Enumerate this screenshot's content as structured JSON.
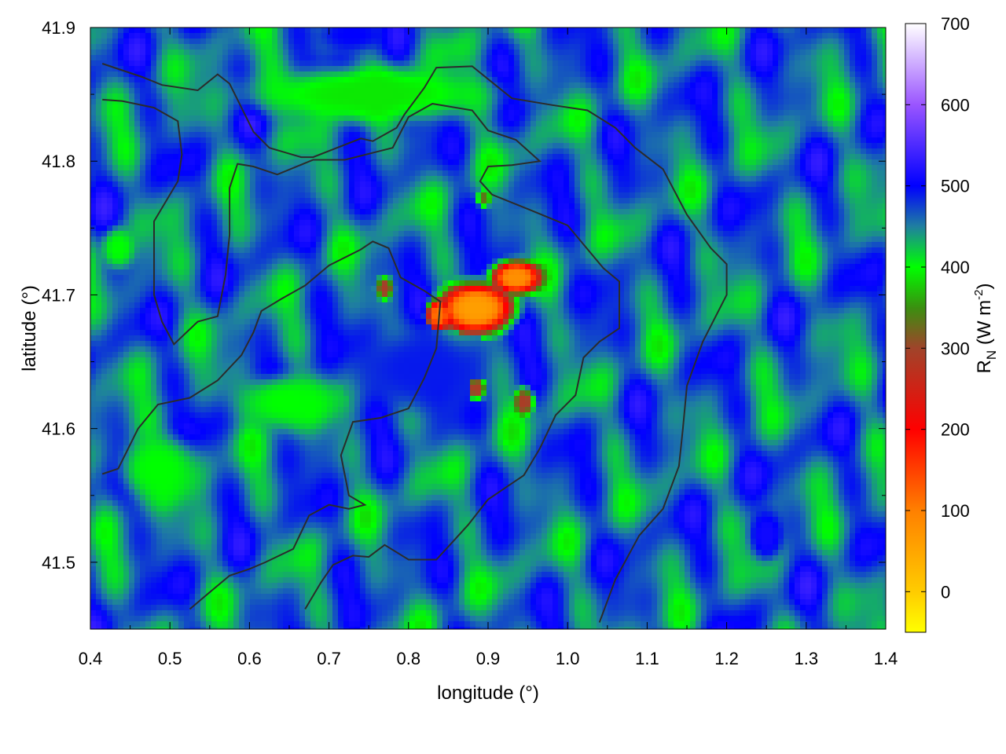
{
  "chart_data": {
    "type": "heatmap",
    "title": "",
    "xlabel": "longitude (°)",
    "ylabel": "latitude (°)",
    "xlim": [
      0.4,
      1.4
    ],
    "ylim": [
      41.45,
      41.9
    ],
    "x_ticks": [
      "0.4",
      "0.5",
      "0.6",
      "0.7",
      "0.8",
      "0.9",
      "1.0",
      "1.1",
      "1.2",
      "1.3",
      "1.4"
    ],
    "x_tick_values": [
      0.4,
      0.5,
      0.6,
      0.7,
      0.8,
      0.9,
      1.0,
      1.1,
      1.2,
      1.3,
      1.4
    ],
    "y_ticks": [
      "41.5",
      "41.6",
      "41.7",
      "41.8",
      "41.9"
    ],
    "y_tick_values": [
      41.5,
      41.6,
      41.7,
      41.8,
      41.9
    ],
    "colorbar": {
      "label_main": "R",
      "label_sub": "N",
      "label_unit_open": " (W m",
      "label_sup": "-2",
      "label_close": ")",
      "range": [
        -50,
        700
      ],
      "ticks": [
        "0",
        "100",
        "200",
        "300",
        "400",
        "500",
        "600",
        "700"
      ],
      "tick_values": [
        0,
        100,
        200,
        300,
        400,
        500,
        600,
        700
      ],
      "stops": [
        {
          "value": -50,
          "color": "#ffff00"
        },
        {
          "value": 0,
          "color": "#ffcc00"
        },
        {
          "value": 100,
          "color": "#ff8000"
        },
        {
          "value": 200,
          "color": "#ff0000"
        },
        {
          "value": 300,
          "color": "#a0442a"
        },
        {
          "value": 350,
          "color": "#3a8f10"
        },
        {
          "value": 400,
          "color": "#00ff00"
        },
        {
          "value": 450,
          "color": "#1f7fa0"
        },
        {
          "value": 500,
          "color": "#0000ff"
        },
        {
          "value": 600,
          "color": "#9a55ff"
        },
        {
          "value": 700,
          "color": "#ffffff"
        }
      ]
    },
    "field": {
      "background_value": 460,
      "features": [
        {
          "name": "urban-core",
          "lon": 0.885,
          "lat": 41.69,
          "value": 60,
          "radius_lon": 0.045,
          "radius_lat": 0.018
        },
        {
          "name": "urban-east",
          "lon": 0.935,
          "lat": 41.713,
          "value": 80,
          "radius_lon": 0.03,
          "radius_lat": 0.012
        },
        {
          "name": "urban-west",
          "lon": 0.838,
          "lat": 41.685,
          "value": 110,
          "radius_lon": 0.015,
          "radius_lat": 0.012
        },
        {
          "name": "spot-1",
          "lon": 0.77,
          "lat": 41.705,
          "value": 290,
          "radius_lon": 0.01,
          "radius_lat": 0.008
        },
        {
          "name": "spot-2",
          "lon": 0.885,
          "lat": 41.63,
          "value": 290,
          "radius_lon": 0.012,
          "radius_lat": 0.008
        },
        {
          "name": "spot-3",
          "lon": 0.945,
          "lat": 41.62,
          "value": 290,
          "radius_lon": 0.012,
          "radius_lat": 0.01
        },
        {
          "name": "spot-4",
          "lon": 0.895,
          "lat": 41.772,
          "value": 330,
          "radius_lon": 0.008,
          "radius_lat": 0.006
        },
        {
          "name": "green-1",
          "lon": 0.645,
          "lat": 41.62,
          "value": 400,
          "radius_lon": 0.06,
          "radius_lat": 0.02
        },
        {
          "name": "green-2",
          "lon": 0.485,
          "lat": 41.57,
          "value": 400,
          "radius_lon": 0.05,
          "radius_lat": 0.025
        },
        {
          "name": "green-3",
          "lon": 0.435,
          "lat": 41.735,
          "value": 400,
          "radius_lon": 0.02,
          "radius_lat": 0.015
        },
        {
          "name": "green-4",
          "lon": 0.75,
          "lat": 41.85,
          "value": 390,
          "radius_lon": 0.15,
          "radius_lat": 0.02
        },
        {
          "name": "blue-1",
          "lon": 1.25,
          "lat": 41.52,
          "value": 510,
          "radius_lon": 0.02,
          "radius_lat": 0.018
        },
        {
          "name": "blue-2",
          "lon": 0.81,
          "lat": 41.645,
          "value": 490,
          "radius_lon": 0.08,
          "radius_lat": 0.03
        },
        {
          "name": "blue-3",
          "lon": 0.73,
          "lat": 41.895,
          "value": 500,
          "radius_lon": 0.04,
          "radius_lat": 0.012
        }
      ]
    },
    "contours": [
      [
        [
          0.415,
          41.873
        ],
        [
          0.465,
          41.863
        ],
        [
          0.49,
          41.857
        ],
        [
          0.535,
          41.853
        ],
        [
          0.56,
          41.865
        ],
        [
          0.575,
          41.858
        ],
        [
          0.605,
          41.822
        ],
        [
          0.625,
          41.81
        ],
        [
          0.665,
          41.803
        ],
        [
          0.68,
          41.803
        ],
        [
          0.74,
          41.817
        ],
        [
          0.755,
          41.815
        ],
        [
          0.785,
          41.825
        ],
        [
          0.795,
          41.835
        ],
        [
          0.82,
          41.855
        ],
        [
          0.835,
          41.87
        ],
        [
          0.88,
          41.871
        ],
        [
          0.93,
          41.847
        ],
        [
          0.98,
          41.842
        ],
        [
          1.025,
          41.838
        ],
        [
          1.06,
          41.825
        ],
        [
          1.085,
          41.81
        ],
        [
          1.12,
          41.794
        ],
        [
          1.15,
          41.76
        ],
        [
          1.18,
          41.735
        ],
        [
          1.2,
          41.723
        ],
        [
          1.2,
          41.7
        ],
        [
          1.17,
          41.665
        ],
        [
          1.15,
          41.632
        ],
        [
          1.145,
          41.6
        ],
        [
          1.14,
          41.572
        ],
        [
          1.12,
          41.54
        ],
        [
          1.09,
          41.52
        ],
        [
          1.06,
          41.487
        ],
        [
          1.04,
          41.455
        ]
      ],
      [
        [
          0.415,
          41.846
        ],
        [
          0.44,
          41.845
        ],
        [
          0.48,
          41.84
        ],
        [
          0.51,
          41.83
        ],
        [
          0.515,
          41.805
        ],
        [
          0.51,
          41.785
        ],
        [
          0.48,
          41.755
        ],
        [
          0.48,
          41.7
        ],
        [
          0.49,
          41.68
        ],
        [
          0.505,
          41.663
        ],
        [
          0.535,
          41.68
        ],
        [
          0.56,
          41.684
        ],
        [
          0.57,
          41.715
        ],
        [
          0.575,
          41.745
        ],
        [
          0.575,
          41.78
        ],
        [
          0.585,
          41.798
        ],
        [
          0.605,
          41.796
        ],
        [
          0.635,
          41.79
        ],
        [
          0.68,
          41.801
        ],
        [
          0.72,
          41.801
        ],
        [
          0.78,
          41.81
        ],
        [
          0.8,
          41.833
        ],
        [
          0.83,
          41.843
        ],
        [
          0.88,
          41.838
        ],
        [
          0.9,
          41.823
        ],
        [
          0.935,
          41.816
        ],
        [
          0.965,
          41.8
        ],
        [
          0.93,
          41.797
        ],
        [
          0.9,
          41.796
        ],
        [
          0.89,
          41.785
        ],
        [
          0.905,
          41.775
        ],
        [
          0.955,
          41.763
        ],
        [
          1.0,
          41.752
        ],
        [
          1.045,
          41.72
        ],
        [
          1.065,
          41.71
        ],
        [
          1.065,
          41.675
        ],
        [
          1.04,
          41.665
        ],
        [
          1.02,
          41.653
        ],
        [
          1.01,
          41.625
        ],
        [
          0.985,
          41.61
        ],
        [
          0.965,
          41.585
        ],
        [
          0.945,
          41.565
        ],
        [
          0.9,
          41.547
        ],
        [
          0.875,
          41.528
        ],
        [
          0.855,
          41.515
        ],
        [
          0.835,
          41.502
        ],
        [
          0.8,
          41.502
        ],
        [
          0.77,
          41.513
        ],
        [
          0.75,
          41.504
        ],
        [
          0.73,
          41.505
        ],
        [
          0.705,
          41.498
        ],
        [
          0.69,
          41.485
        ],
        [
          0.67,
          41.465
        ]
      ],
      [
        [
          0.415,
          41.566
        ],
        [
          0.435,
          41.57
        ],
        [
          0.46,
          41.6
        ],
        [
          0.485,
          41.618
        ],
        [
          0.525,
          41.623
        ],
        [
          0.56,
          41.636
        ],
        [
          0.59,
          41.655
        ],
        [
          0.605,
          41.672
        ],
        [
          0.615,
          41.688
        ],
        [
          0.64,
          41.697
        ],
        [
          0.67,
          41.707
        ],
        [
          0.7,
          41.722
        ],
        [
          0.74,
          41.734
        ],
        [
          0.755,
          41.74
        ],
        [
          0.775,
          41.735
        ],
        [
          0.79,
          41.713
        ],
        [
          0.82,
          41.703
        ],
        [
          0.84,
          41.695
        ],
        [
          0.835,
          41.66
        ],
        [
          0.82,
          41.638
        ],
        [
          0.8,
          41.615
        ],
        [
          0.765,
          41.608
        ],
        [
          0.73,
          41.605
        ],
        [
          0.715,
          41.58
        ],
        [
          0.725,
          41.55
        ],
        [
          0.745,
          41.543
        ],
        [
          0.725,
          41.54
        ],
        [
          0.7,
          41.543
        ],
        [
          0.675,
          41.535
        ],
        [
          0.655,
          41.51
        ],
        [
          0.62,
          41.5
        ],
        [
          0.6,
          41.495
        ],
        [
          0.575,
          41.49
        ],
        [
          0.545,
          41.475
        ],
        [
          0.525,
          41.465
        ]
      ]
    ],
    "grid": false,
    "legend": "none"
  }
}
